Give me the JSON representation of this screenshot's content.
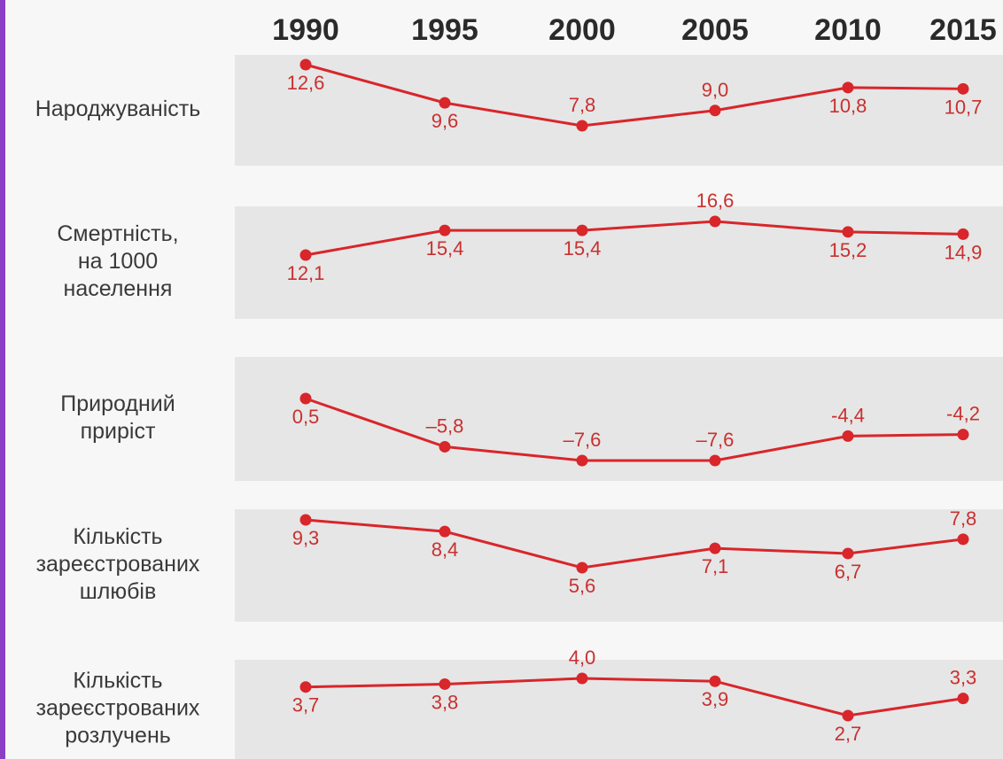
{
  "colors": {
    "accent": "#d8262b",
    "band": "#e6e6e6",
    "frame": "#8a3fc4"
  },
  "chart_data": {
    "type": "line",
    "x": [
      "1990",
      "1995",
      "2000",
      "2005",
      "2010",
      "2015"
    ],
    "rows": [
      {
        "label": [
          "Народжуваність"
        ],
        "values": [
          12.6,
          9.6,
          7.8,
          9.0,
          10.8,
          10.7
        ],
        "labels": [
          "12,6",
          "9,6",
          "7,8",
          "9,0",
          "10,8",
          "10,7"
        ]
      },
      {
        "label": [
          "Смертність,",
          "на 1000",
          "населення"
        ],
        "values": [
          12.1,
          15.4,
          15.4,
          16.6,
          15.2,
          14.9
        ],
        "labels": [
          "12,1",
          "15,4",
          "15,4",
          "16,6",
          "15,2",
          "14,9"
        ]
      },
      {
        "label": [
          "Природний",
          "приріст"
        ],
        "values": [
          0.5,
          -5.8,
          -7.6,
          -7.6,
          -4.4,
          -4.2
        ],
        "labels": [
          "0,5",
          "–5,8",
          "–7,6",
          "–7,6",
          "-4,4",
          "-4,2"
        ]
      },
      {
        "label": [
          "Кількість",
          "зареєстрованих",
          "шлюбів"
        ],
        "values": [
          9.3,
          8.4,
          5.6,
          7.1,
          6.7,
          7.8
        ],
        "labels": [
          "9,3",
          "8,4",
          "5,6",
          "7,1",
          "6,7",
          "7,8"
        ]
      },
      {
        "label": [
          "Кількість",
          "зареєстрованих",
          "розлучень"
        ],
        "values": [
          3.7,
          3.8,
          4.0,
          3.9,
          2.7,
          3.3
        ],
        "labels": [
          "3,7",
          "3,8",
          "4,0",
          "3,9",
          "2,7",
          "3,3"
        ]
      }
    ]
  }
}
